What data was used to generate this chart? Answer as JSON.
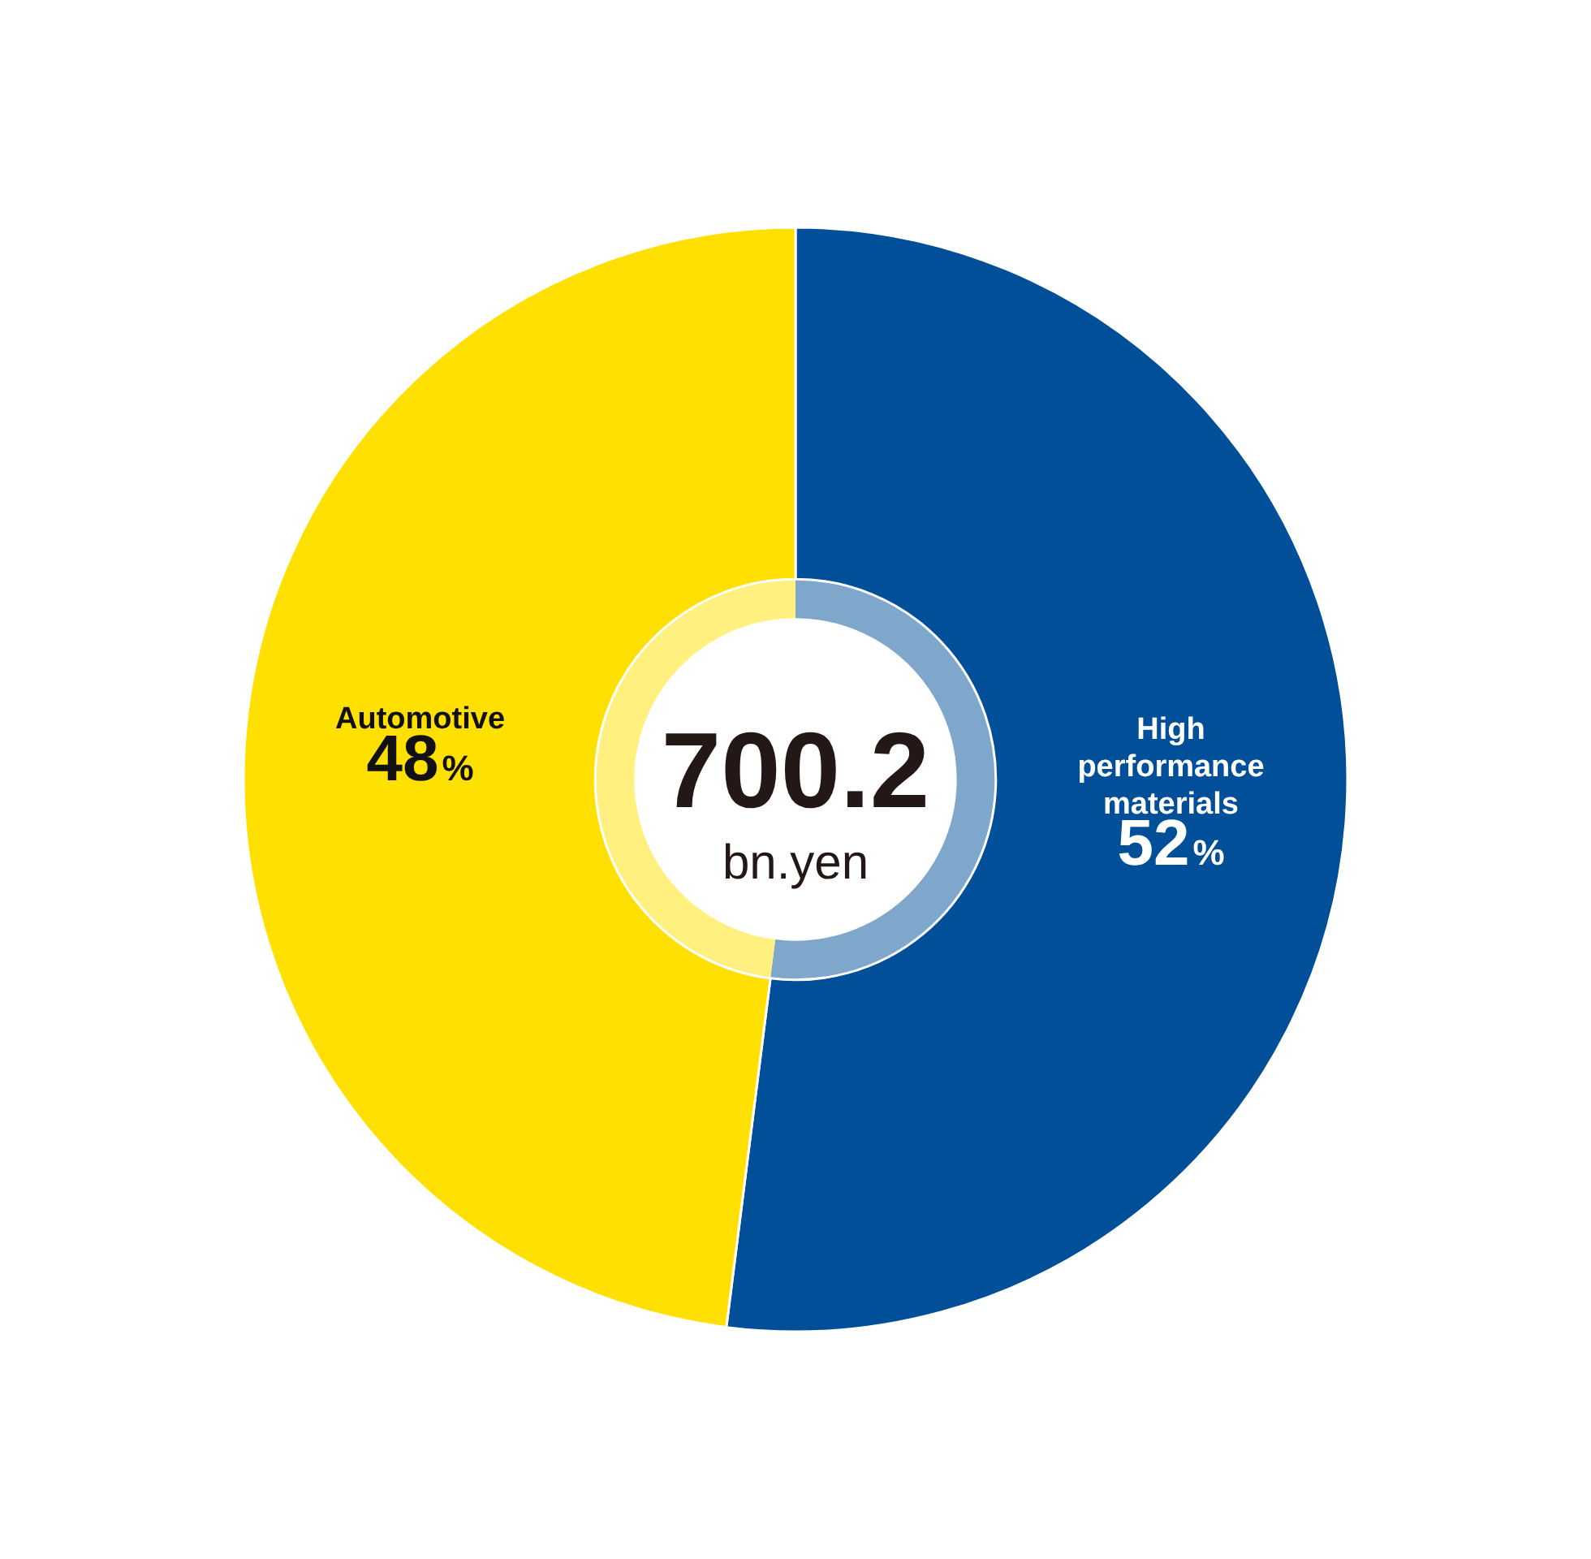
{
  "chart_data": {
    "type": "donut",
    "categories": [
      "High performance materials",
      "Automotive"
    ],
    "series": [
      {
        "values": [
          52,
          48
        ],
        "colors": [
          "#004f98",
          "#ffe000"
        ]
      },
      {
        "values": [
          52,
          48
        ],
        "colors": [
          "#7fa7cb",
          "#fff07f"
        ]
      }
    ],
    "value_labels": [
      "52%",
      "48%"
    ],
    "annotations": [
      "700.2",
      "bn.yen"
    ],
    "legend": false
  }
}
